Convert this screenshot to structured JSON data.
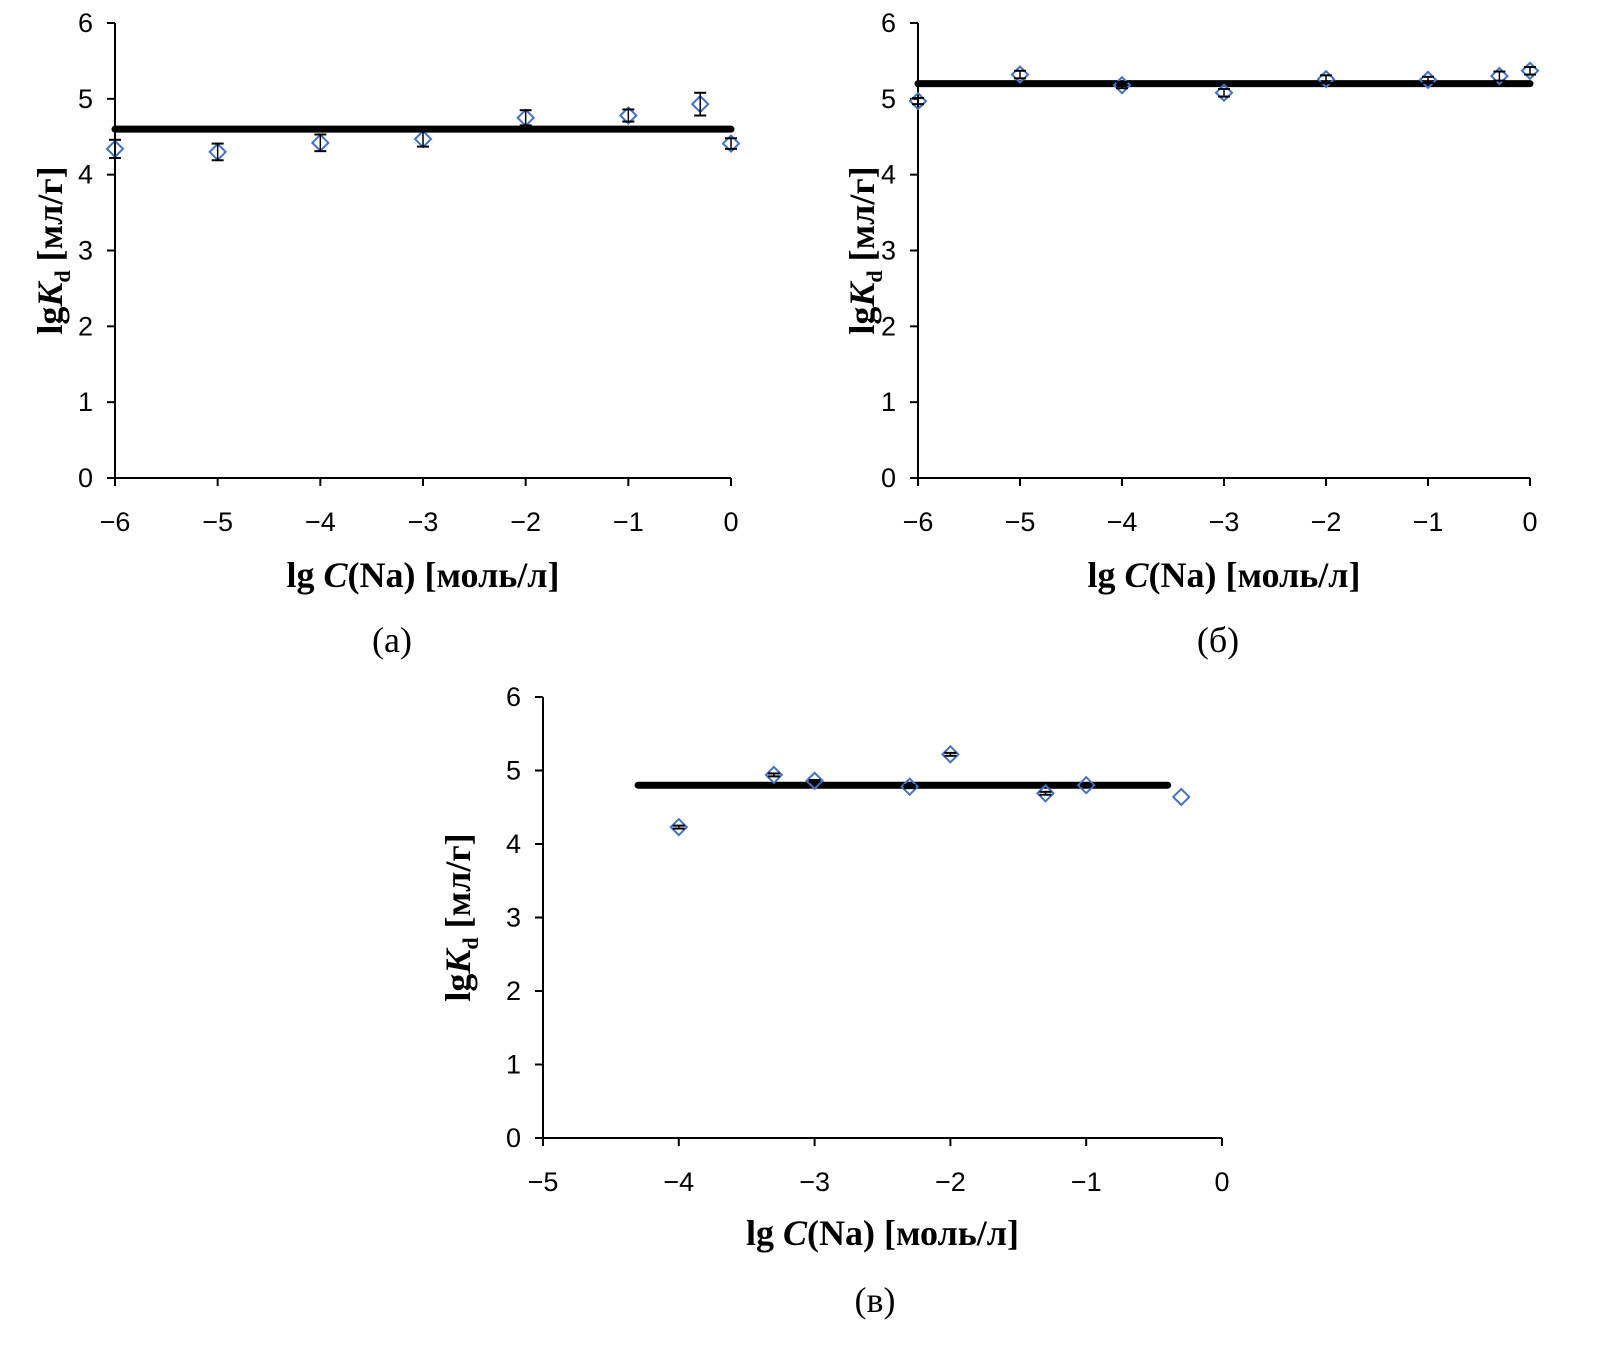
{
  "chart_data": [
    {
      "type": "scatter",
      "caption": "(а)",
      "xlabel_prefix": "lg ",
      "xlabel_var": "C",
      "xlabel_suffix": "(Na) [моль/л]",
      "ylabel_prefix": "lg",
      "ylabel_var": "K",
      "ylabel_sub": "d",
      "ylabel_suffix": " [мл/г]",
      "xlim": [
        -6,
        0
      ],
      "ylim": [
        0,
        6
      ],
      "xticks": [
        -6,
        -5,
        -4,
        -3,
        -2,
        -1,
        0
      ],
      "yticks": [
        0,
        1,
        2,
        3,
        4,
        5,
        6
      ],
      "marker_color": "#4472C4",
      "points": [
        {
          "x": -6,
          "y": 4.34,
          "err": 0.12
        },
        {
          "x": -5,
          "y": 4.3,
          "err": 0.11
        },
        {
          "x": -4,
          "y": 4.42,
          "err": 0.11
        },
        {
          "x": -3,
          "y": 4.47,
          "err": 0.1
        },
        {
          "x": -2,
          "y": 4.75,
          "err": 0.1
        },
        {
          "x": -1,
          "y": 4.78,
          "err": 0.08
        },
        {
          "x": -0.3,
          "y": 4.93,
          "err": 0.15
        },
        {
          "x": 0,
          "y": 4.41,
          "err": 0.07
        }
      ],
      "mean_line": {
        "y": 4.6,
        "x_from": -6,
        "x_to": 0
      }
    },
    {
      "type": "scatter",
      "caption": "(б)",
      "xlabel_prefix": "lg ",
      "xlabel_var": "C",
      "xlabel_suffix": "(Na) [моль/л]",
      "ylabel_prefix": "lg",
      "ylabel_var": "K",
      "ylabel_sub": "d",
      "ylabel_suffix": " [мл/г]",
      "xlim": [
        -6,
        0
      ],
      "ylim": [
        0,
        6
      ],
      "xticks": [
        -6,
        -5,
        -4,
        -3,
        -2,
        -1,
        0
      ],
      "yticks": [
        0,
        1,
        2,
        3,
        4,
        5,
        6
      ],
      "marker_color": "#4472C4",
      "points": [
        {
          "x": -6,
          "y": 4.97,
          "err": 0.04
        },
        {
          "x": -5,
          "y": 5.32,
          "err": 0.05
        },
        {
          "x": -4,
          "y": 5.18,
          "err": 0.04
        },
        {
          "x": -3,
          "y": 5.08,
          "err": 0.05
        },
        {
          "x": -2,
          "y": 5.26,
          "err": 0.05
        },
        {
          "x": -1,
          "y": 5.25,
          "err": 0.04
        },
        {
          "x": -0.3,
          "y": 5.3,
          "err": 0.06
        },
        {
          "x": 0,
          "y": 5.37,
          "err": 0.05
        }
      ],
      "mean_line": {
        "y": 5.2,
        "x_from": -6,
        "x_to": 0
      }
    },
    {
      "type": "scatter",
      "caption": "(в)",
      "xlabel_prefix": "lg ",
      "xlabel_var": "C",
      "xlabel_suffix": "(Na) [моль/л]",
      "ylabel_prefix": "lg",
      "ylabel_var": "K",
      "ylabel_sub": "d",
      "ylabel_suffix": " [мл/г]",
      "xlim": [
        -5,
        0
      ],
      "ylim": [
        0,
        6
      ],
      "xticks": [
        -5,
        -4,
        -3,
        -2,
        -1,
        0
      ],
      "yticks": [
        0,
        1,
        2,
        3,
        4,
        5,
        6
      ],
      "marker_color": "#4472C4",
      "points": [
        {
          "x": -4,
          "y": 4.23,
          "err": 0.02
        },
        {
          "x": -3.3,
          "y": 4.94,
          "err": 0.02
        },
        {
          "x": -3,
          "y": 4.86,
          "err": 0.01
        },
        {
          "x": -2.3,
          "y": 4.78,
          "err": 0.02
        },
        {
          "x": -2,
          "y": 5.22,
          "err": 0.02
        },
        {
          "x": -1.3,
          "y": 4.69,
          "err": 0.02
        },
        {
          "x": -1,
          "y": 4.8,
          "err": 0.01
        },
        {
          "x": -0.3,
          "y": 4.64,
          "err": 0
        }
      ],
      "mean_line": {
        "y": 4.8,
        "x_from": -4.3,
        "x_to": -0.4
      }
    }
  ]
}
